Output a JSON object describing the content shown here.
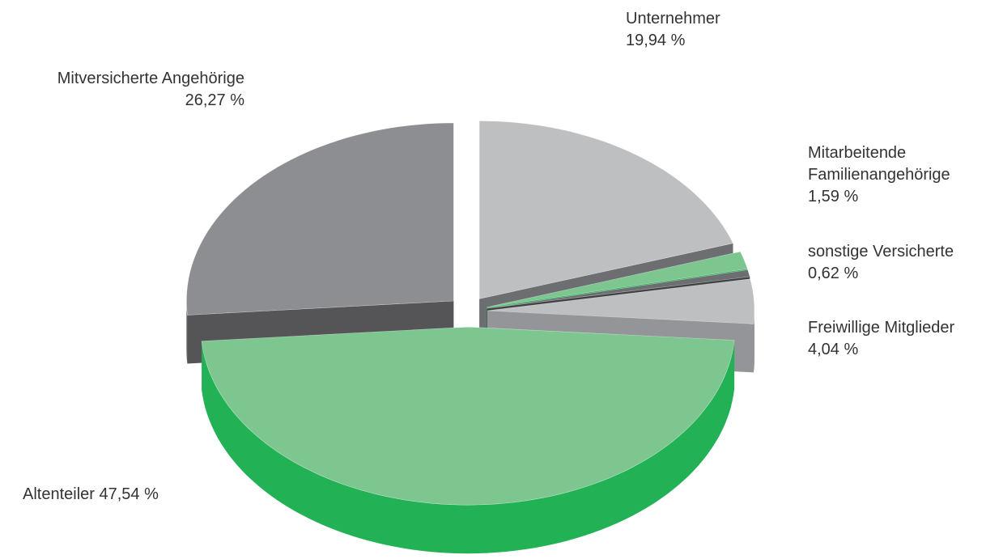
{
  "chart_data": {
    "type": "pie",
    "categories": [
      "Unternehmer",
      "Mitarbeitende Familienangehörige",
      "sonstige Versicherte",
      "Freiwillige Mitglieder",
      "Altenteiler",
      "Mitversicherte Angehörige"
    ],
    "values": [
      19.94,
      1.59,
      0.62,
      4.04,
      47.54,
      26.27
    ],
    "value_labels": [
      "19,94 %",
      "1,59 %",
      "0,62 %",
      "4,04 %",
      "47,54 %",
      "26,27 %"
    ],
    "colors": [
      "#bebfc1",
      "#7dc68f",
      "#6d6e71",
      "#bebfc1",
      "#7dc68f",
      "#8d8e91"
    ],
    "side_colors": [
      "#6d6e71",
      "#22b155",
      "#414042",
      "#939598",
      "#22b155",
      "#555557"
    ]
  }
}
